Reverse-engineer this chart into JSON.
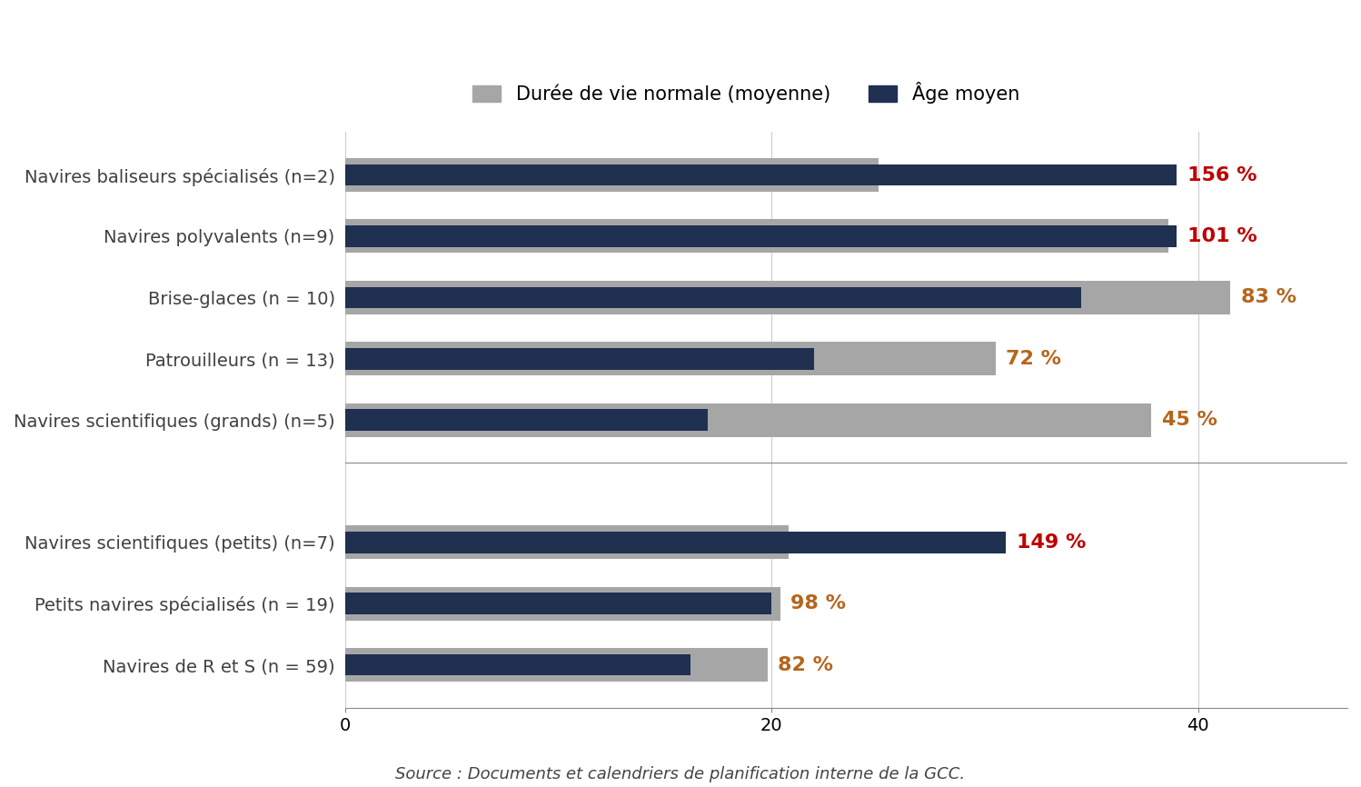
{
  "categories": [
    "Navires baliseurs spécialisés (n=2)",
    "Navires polyvalents (n=9)",
    "Brise-glaces (n = 10)",
    "Patrouilleurs (n = 13)",
    "Navires scientifiques (grands) (n=5)",
    "",
    "Navires scientifiques (petits) (n=7)",
    "Petits navires spécialisés (n = 19)",
    "Navires de R et S (n = 59)"
  ],
  "normal_life": [
    25.0,
    38.6,
    41.5,
    30.5,
    37.8,
    0,
    20.8,
    20.4,
    19.8
  ],
  "average_age": [
    39.0,
    39.0,
    34.5,
    22.0,
    17.0,
    0,
    31.0,
    20.0,
    16.2
  ],
  "percentages": [
    "156 %",
    "101 %",
    "83 %",
    "72 %",
    "45 %",
    "",
    "149 %",
    "98 %",
    "82 %"
  ],
  "pct_colors": [
    "#c00000",
    "#c00000",
    "#b5651d",
    "#b5651d",
    "#b5651d",
    "",
    "#c00000",
    "#b5651d",
    "#b5651d"
  ],
  "color_gray": "#a6a6a6",
  "color_dark": "#1f3050",
  "xlim": [
    0,
    47
  ],
  "xticks": [
    0,
    20,
    40
  ],
  "legend_labels": [
    "Durée de vie normale (moyenne)",
    "Âge moyen"
  ],
  "source_text": "Source : Documents et calendriers de planification interne de la GCC.",
  "background_color": "#ffffff",
  "gray_bar_height": 0.55,
  "dark_bar_height": 0.35,
  "separator_between": [
    4,
    6
  ],
  "label_fontsize": 14,
  "tick_fontsize": 14,
  "pct_fontsize": 16,
  "legend_fontsize": 15
}
